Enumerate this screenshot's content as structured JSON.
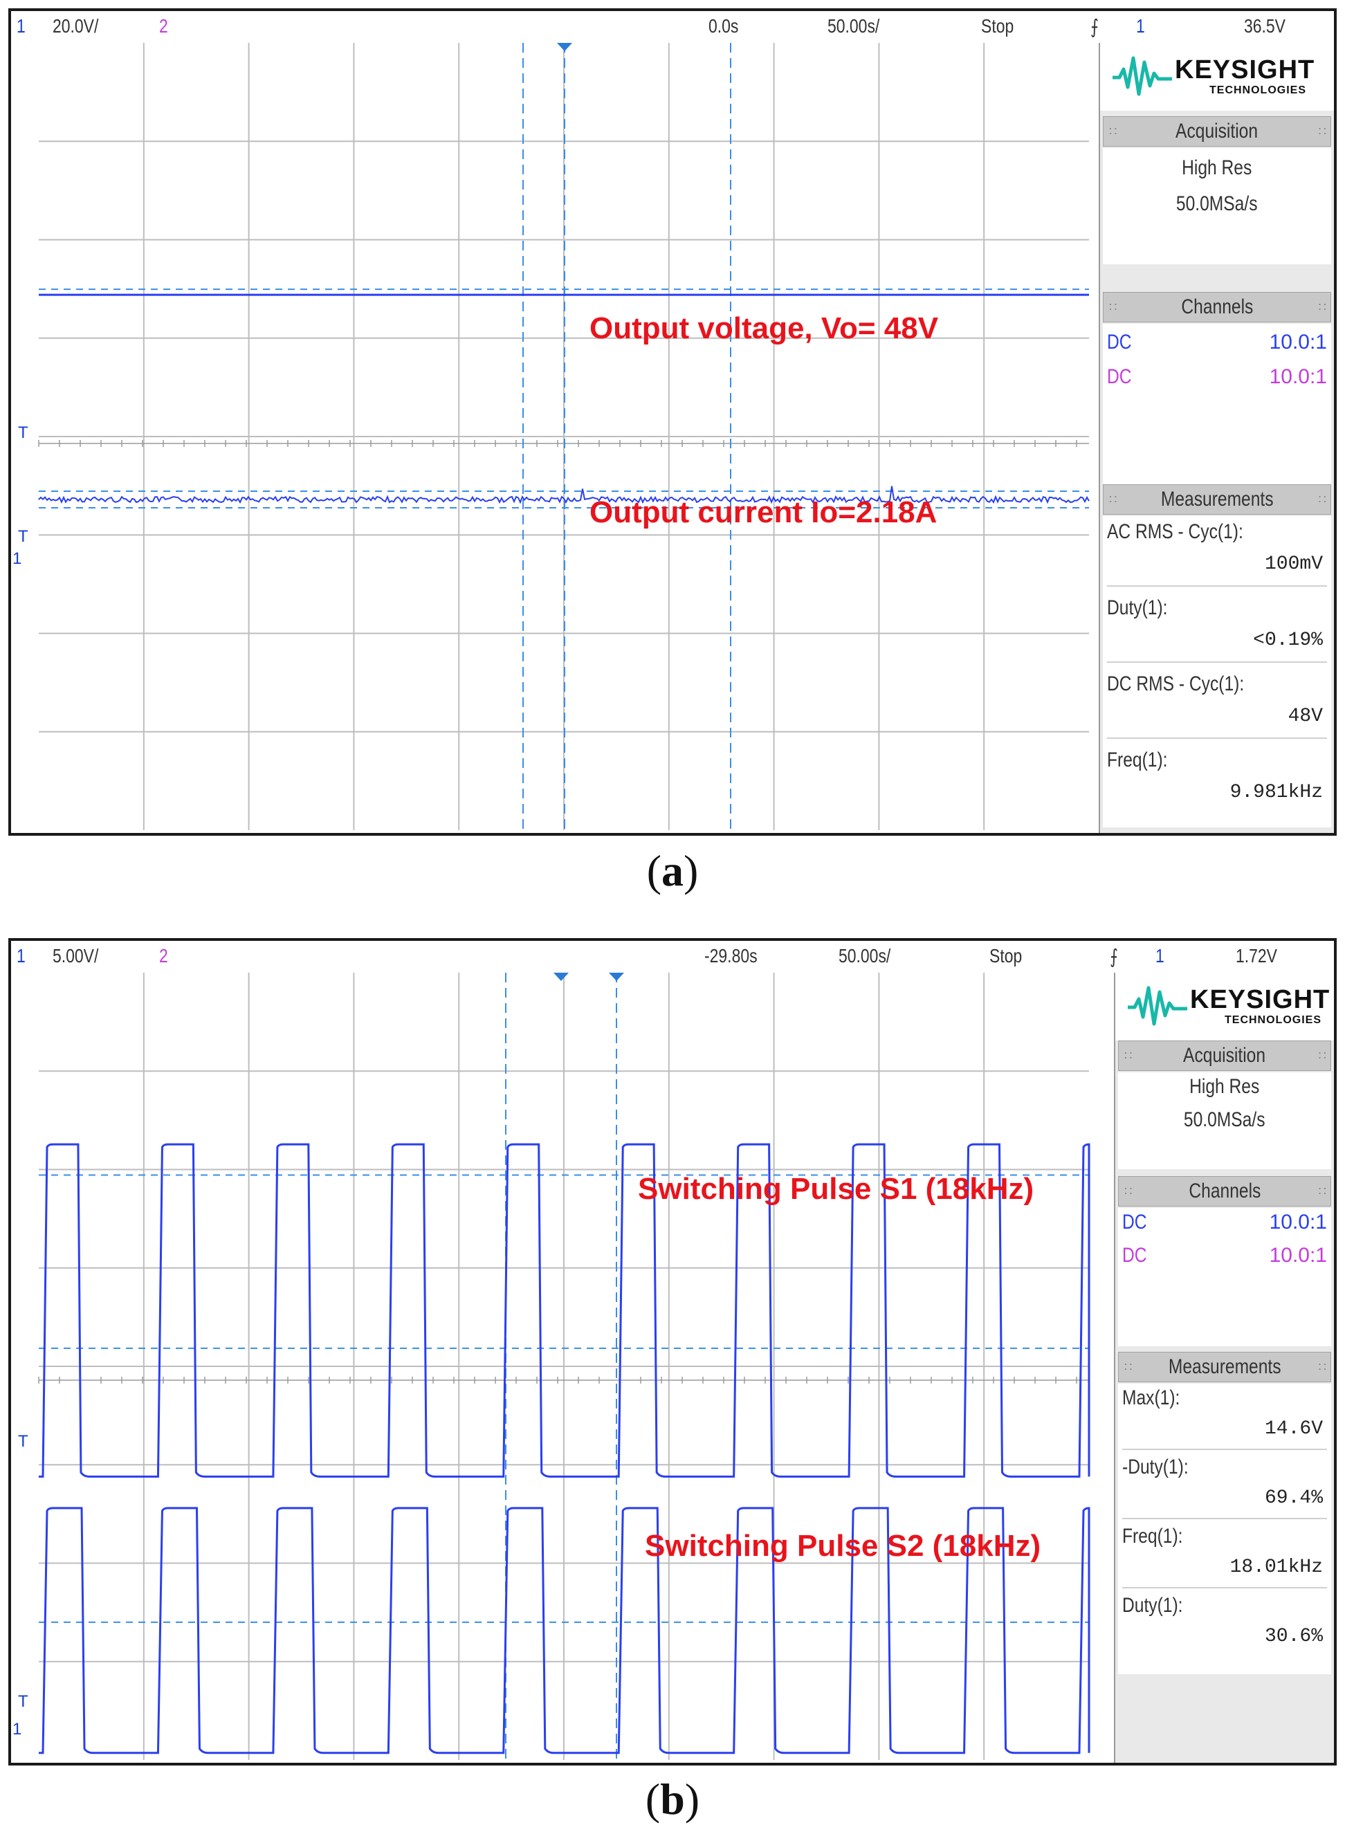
{
  "figures": [
    {
      "id": "a",
      "caption_letter": "a",
      "topbar": {
        "ch1": "1",
        "ch1_scale": "20.0V/",
        "ch2": "2",
        "delay": "0.0s",
        "timebase": "50.00s/",
        "run_state": "Stop",
        "trigger_icon": "trigger-edge-icon",
        "trig_ch": "1",
        "trig_level": "36.5V"
      },
      "annotations": [
        "Output voltage, Vo= 48V",
        "Output current Io=2.18A"
      ],
      "panel": {
        "brand": "KEYSIGHT",
        "brand_sub": "TECHNOLOGIES",
        "acquisition_title": "Acquisition",
        "acq_mode": "High Res",
        "acq_rate": "50.0MSa/s",
        "channels_title": "Channels",
        "channels": [
          {
            "coupling": "DC",
            "probe": "10.0:1",
            "color": "#2a3ff0"
          },
          {
            "coupling": "DC",
            "probe": "10.0:1",
            "color": "#c43cdc"
          }
        ],
        "measurements_title": "Measurements",
        "measurements": [
          {
            "name": "AC RMS - Cyc(1):",
            "value": "100mV"
          },
          {
            "name": "Duty(1):",
            "value": "<0.19%"
          },
          {
            "name": "DC RMS - Cyc(1):",
            "value": "48V"
          },
          {
            "name": "Freq(1):",
            "value": "9.981kHz"
          }
        ]
      },
      "markers": [
        "T",
        "T",
        "1"
      ]
    },
    {
      "id": "b",
      "caption_letter": "b",
      "topbar": {
        "ch1": "1",
        "ch1_scale": "5.00V/",
        "ch2": "2",
        "delay": "-29.80s",
        "timebase": "50.00s/",
        "run_state": "Stop",
        "trigger_icon": "trigger-edge-icon",
        "trig_ch": "1",
        "trig_level": "1.72V"
      },
      "annotations": [
        "Switching Pulse S1 (18kHz)",
        "Switching Pulse S2 (18kHz)"
      ],
      "panel": {
        "brand": "KEYSIGHT",
        "brand_sub": "TECHNOLOGIES",
        "acquisition_title": "Acquisition",
        "acq_mode": "High Res",
        "acq_rate": "50.0MSa/s",
        "channels_title": "Channels",
        "channels": [
          {
            "coupling": "DC",
            "probe": "10.0:1",
            "color": "#2a3ff0"
          },
          {
            "coupling": "DC",
            "probe": "10.0:1",
            "color": "#c43cdc"
          }
        ],
        "measurements_title": "Measurements",
        "measurements": [
          {
            "name": "Max(1):",
            "value": "14.6V"
          },
          {
            "name": "-Duty(1):",
            "value": "69.4%"
          },
          {
            "name": "Freq(1):",
            "value": "18.01kHz"
          },
          {
            "name": "Duty(1):",
            "value": "30.6%"
          }
        ]
      },
      "markers": [
        "T",
        "T",
        "1"
      ]
    }
  ],
  "colors": {
    "trace": "#2a3ff0",
    "grid": "#bdbdbd",
    "cursor": "#3a8ee6",
    "annotation": "#e8141c"
  },
  "waveforms": {
    "a_vo_level": 0.32,
    "a_io_level": 0.58,
    "b_pulse_count": 9,
    "b_duty": 0.306
  }
}
